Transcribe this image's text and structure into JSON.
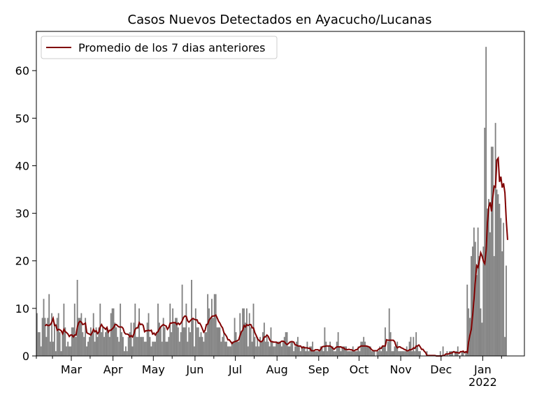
{
  "chart_data": {
    "type": "bar",
    "title": "Casos Nuevos Detectados en Ayacucho/Lucanas",
    "xlabel": "",
    "ylabel": "",
    "ylim": [
      0,
      68.25
    ],
    "yticks": [
      0,
      10,
      20,
      30,
      40,
      50,
      60
    ],
    "x_start": "2021-02-03",
    "x_end": "2022-01-31",
    "xticks": [
      {
        "date": "2021-03-01",
        "label": "Mar"
      },
      {
        "date": "2021-04-01",
        "label": "Apr"
      },
      {
        "date": "2021-05-01",
        "label": "May"
      },
      {
        "date": "2021-06-01",
        "label": "Jun"
      },
      {
        "date": "2021-07-01",
        "label": "Jul"
      },
      {
        "date": "2021-08-01",
        "label": "Aug"
      },
      {
        "date": "2021-09-01",
        "label": "Sep"
      },
      {
        "date": "2021-10-01",
        "label": "Oct"
      },
      {
        "date": "2021-11-01",
        "label": "Nov"
      },
      {
        "date": "2021-12-01",
        "label": "Dec"
      },
      {
        "date": "2022-01-01",
        "label": "Jan\n2022"
      }
    ],
    "bar_color": "#808080",
    "line_color": "#800000",
    "legend": {
      "placement": "upper-left",
      "label": "Promedio de los 7 dias anteriores"
    },
    "daily_cases": [
      9,
      5,
      5,
      2,
      8,
      12,
      8,
      4,
      8,
      13,
      3,
      9,
      3,
      7,
      1,
      8,
      9,
      5,
      1,
      5,
      11,
      6,
      2,
      3,
      2,
      2,
      6,
      6,
      11,
      4,
      16,
      8,
      8,
      9,
      5,
      4,
      8,
      2,
      3,
      4,
      6,
      5,
      9,
      3,
      6,
      4,
      6,
      11,
      5,
      6,
      4,
      5,
      6,
      5,
      4,
      9,
      10,
      10,
      7,
      6,
      4,
      3,
      11,
      5,
      4,
      1,
      2,
      1,
      4,
      5,
      7,
      2,
      7,
      11,
      4,
      4,
      10,
      4,
      4,
      4,
      3,
      3,
      7,
      9,
      4,
      2,
      3,
      3,
      3,
      5,
      11,
      7,
      6,
      3,
      8,
      6,
      3,
      3,
      4,
      11,
      5,
      10,
      7,
      8,
      8,
      6,
      3,
      5,
      15,
      6,
      6,
      11,
      3,
      6,
      5,
      16,
      8,
      2,
      10,
      6,
      6,
      4,
      5,
      4,
      3,
      5,
      5,
      13,
      10,
      8,
      12,
      8,
      13,
      13,
      6,
      6,
      6,
      3,
      4,
      5,
      3,
      3,
      2,
      2,
      2,
      3,
      3,
      8,
      5,
      3,
      3,
      9,
      5,
      10,
      10,
      7,
      10,
      2,
      9,
      6,
      3,
      11,
      4,
      2,
      4,
      2,
      4,
      3,
      5,
      7,
      3,
      4,
      3,
      2,
      6,
      3,
      2,
      2,
      3,
      3,
      3,
      3,
      2,
      3,
      4,
      5,
      5,
      2,
      2,
      3,
      3,
      1,
      2,
      3,
      4,
      2,
      1,
      2,
      2,
      2,
      1,
      3,
      1,
      2,
      2,
      3,
      1,
      1,
      1,
      1,
      1,
      2,
      2,
      1,
      6,
      3,
      1,
      2,
      3,
      2,
      2,
      1,
      1,
      3,
      5,
      2,
      1,
      2,
      2,
      2,
      2,
      1,
      1,
      1,
      1,
      2,
      1,
      1,
      1,
      2,
      1,
      3,
      3,
      4,
      3,
      2,
      2,
      2,
      2,
      1,
      1,
      1,
      0,
      1,
      1,
      2,
      1,
      2,
      2,
      6,
      1,
      3,
      10,
      5,
      1,
      1,
      2,
      2,
      3,
      1,
      1,
      1,
      1,
      1,
      1,
      2,
      1,
      3,
      4,
      1,
      4,
      1,
      5,
      2,
      1,
      1,
      0,
      0,
      0,
      0,
      1,
      0,
      0,
      0,
      0,
      0,
      0,
      0,
      0,
      0,
      1,
      0,
      2,
      0,
      0,
      1,
      0,
      1,
      1,
      1,
      0,
      1,
      1,
      2,
      0,
      0,
      1,
      1,
      0,
      1,
      15,
      10,
      8,
      21,
      23,
      27,
      24,
      17,
      27,
      21,
      10,
      7,
      23,
      48,
      65,
      31,
      33,
      26,
      44,
      44,
      21,
      49,
      35,
      34,
      32,
      29,
      22,
      28,
      4,
      19
    ],
    "rolling_avg_7d": [
      null,
      null,
      null,
      null,
      null,
      null,
      6.3,
      6.6,
      6.4,
      6.4,
      6.6,
      7.1,
      7.9,
      6.4,
      6.5,
      5.4,
      5.6,
      5.5,
      5.3,
      4.7,
      5.6,
      5.1,
      4.9,
      4.6,
      4.1,
      4.4,
      4.4,
      4.0,
      4.4,
      4.4,
      6.1,
      7.0,
      7.3,
      7.1,
      6.6,
      6.7,
      6.9,
      4.9,
      4.7,
      4.6,
      4.4,
      4.9,
      5.6,
      5.1,
      5.3,
      4.7,
      5.0,
      6.1,
      6.6,
      6.1,
      5.9,
      5.6,
      6.0,
      5.0,
      5.4,
      5.4,
      5.7,
      6.0,
      6.6,
      6.6,
      6.3,
      6.1,
      6.1,
      6.1,
      5.8,
      4.9,
      4.6,
      4.6,
      4.5,
      4.0,
      4.3,
      4.0,
      4.6,
      5.6,
      5.9,
      5.9,
      7.0,
      6.6,
      6.7,
      6.4,
      5.1,
      5.3,
      5.3,
      5.4,
      5.3,
      5.4,
      4.6,
      4.8,
      4.4,
      4.9,
      5.1,
      5.7,
      6.1,
      6.4,
      6.6,
      6.4,
      6.3,
      5.6,
      6.0,
      6.9,
      6.9,
      7.0,
      7.0,
      7.0,
      6.6,
      6.9,
      6.6,
      6.9,
      7.4,
      8.1,
      8.4,
      8.3,
      7.4,
      7.1,
      7.4,
      7.7,
      7.9,
      7.7,
      7.6,
      7.6,
      6.9,
      6.9,
      6.4,
      5.7,
      5.0,
      5.4,
      6.6,
      6.7,
      7.6,
      7.9,
      8.3,
      8.4,
      8.4,
      8.6,
      8.0,
      7.3,
      6.9,
      6.3,
      5.9,
      4.9,
      4.5,
      4.1,
      3.4,
      3.4,
      3.0,
      2.6,
      2.9,
      3.0,
      3.1,
      3.2,
      3.4,
      4.3,
      5.1,
      5.4,
      6.4,
      6.1,
      6.6,
      6.4,
      6.6,
      6.6,
      5.9,
      5.9,
      4.9,
      4.3,
      3.6,
      3.3,
      3.0,
      3.0,
      3.3,
      4.0,
      4.0,
      4.4,
      4.1,
      3.4,
      3.0,
      3.0,
      2.9,
      2.9,
      2.9,
      2.7,
      2.7,
      2.9,
      3.1,
      3.1,
      3.0,
      2.6,
      2.4,
      2.6,
      2.9,
      3.0,
      3.0,
      2.9,
      2.3,
      2.3,
      2.1,
      2.1,
      2.1,
      1.7,
      1.9,
      1.7,
      1.7,
      1.7,
      1.6,
      1.6,
      1.1,
      1.1,
      1.1,
      1.3,
      1.3,
      1.3,
      1.1,
      1.4,
      1.9,
      2.0,
      2.0,
      2.1,
      2.1,
      2.1,
      2.1,
      1.9,
      1.6,
      1.4,
      1.7,
      1.9,
      1.9,
      1.9,
      1.9,
      1.7,
      1.7,
      1.4,
      1.4,
      1.3,
      1.4,
      1.3,
      1.3,
      1.1,
      1.1,
      1.3,
      1.3,
      1.7,
      1.9,
      2.1,
      2.1,
      2.1,
      2.1,
      2.1,
      2.0,
      1.9,
      1.6,
      1.3,
      1.1,
      1.1,
      1.1,
      1.1,
      1.4,
      1.6,
      1.6,
      2.1,
      2.1,
      2.1,
      3.4,
      3.3,
      3.3,
      3.3,
      3.3,
      3.3,
      3.0,
      2.1,
      1.7,
      1.9,
      1.9,
      1.7,
      1.6,
      1.4,
      1.3,
      1.1,
      1.1,
      1.3,
      1.3,
      1.4,
      1.7,
      1.6,
      2.1,
      2.1,
      2.3,
      1.9,
      1.4,
      1.4,
      1.0,
      0.7,
      0.1,
      0.1,
      0.1,
      0.1,
      0.1,
      0.1,
      0.1,
      0.0,
      0.0,
      0.0,
      0.0,
      0.0,
      0.1,
      0.1,
      0.4,
      0.4,
      0.4,
      0.6,
      0.6,
      0.7,
      0.9,
      0.7,
      0.7,
      0.7,
      0.6,
      0.9,
      0.9,
      1.0,
      0.7,
      0.9,
      0.7,
      3.0,
      4.4,
      5.6,
      8.6,
      11.9,
      15.7,
      19.0,
      18.6,
      20.0,
      21.7,
      21.0,
      19.9,
      19.4,
      22.1,
      28.1,
      31.3,
      32.3,
      30.4,
      33.4,
      35.7,
      35.5,
      41.2,
      41.6,
      36.6,
      37.7,
      35.4,
      36.3,
      34.3,
      28.6,
      24.4
    ]
  }
}
